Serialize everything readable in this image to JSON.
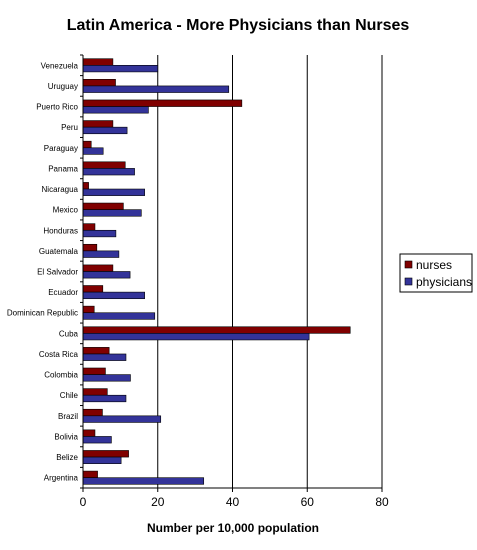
{
  "chart_data": {
    "type": "bar",
    "orientation": "horizontal",
    "title": "Latin America - More Physicians than Nurses",
    "xlabel": "Number per 10,000 population",
    "ylabel": "",
    "xlim": [
      0,
      80
    ],
    "xticks": [
      0,
      20,
      40,
      60,
      80
    ],
    "grid": "vertical major lines",
    "legend_position": "right",
    "categories": [
      "Venezuela",
      "Uruguay",
      "Puerto Rico",
      "Peru",
      "Paraguay",
      "Panama",
      "Nicaragua",
      "Mexico",
      "Honduras",
      "Guatemala",
      "El Salvador",
      "Ecuador",
      "Dominican Republic",
      "Cuba",
      "Costa Rica",
      "Colombia",
      "Chile",
      "Brazil",
      "Bolivia",
      "Belize",
      "Argentina"
    ],
    "series": [
      {
        "name": "nurses",
        "color": "#800000",
        "values": [
          8,
          8.7,
          42.5,
          8,
          2.2,
          11.3,
          1.5,
          10.8,
          3.2,
          3.7,
          8,
          5.3,
          3,
          71.5,
          7,
          6,
          6.5,
          5.2,
          3.2,
          12.2,
          3.9
        ]
      },
      {
        "name": "physicians",
        "color": "#333399",
        "values": [
          20,
          39,
          17.5,
          11.8,
          5.4,
          13.8,
          16.5,
          15.6,
          8.8,
          9.6,
          12.6,
          16.5,
          19.2,
          60.5,
          11.5,
          12.7,
          11.5,
          20.8,
          7.6,
          10.2,
          32.3
        ]
      }
    ]
  }
}
